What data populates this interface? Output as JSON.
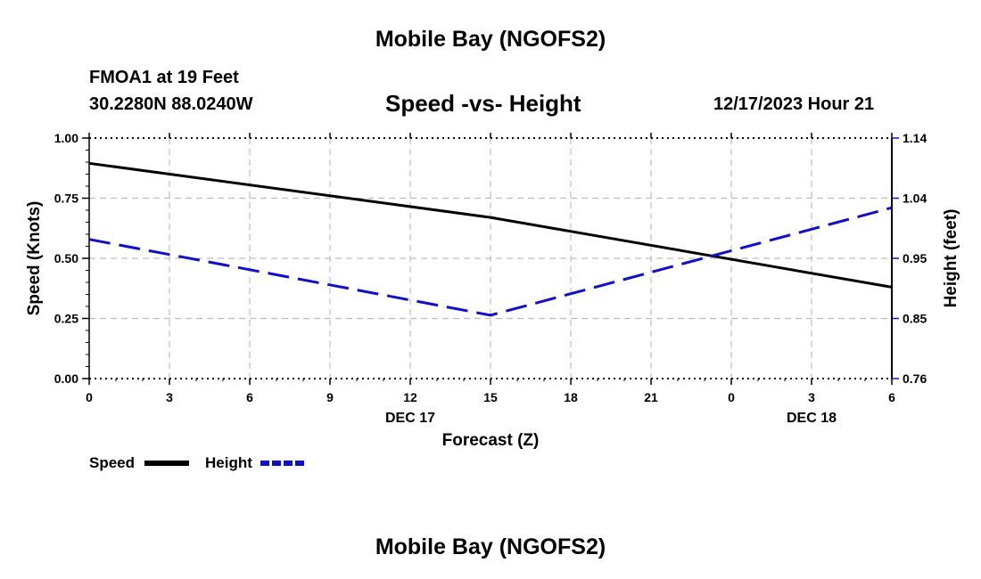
{
  "header": {
    "title": "Mobile Bay (NGOFS2)",
    "station": "FMOA1 at 19 Feet",
    "coords": "30.2280N  88.0240W",
    "subtitle": "Speed -vs- Height",
    "datetime": "12/17/2023 Hour 21",
    "footer_title": "Mobile Bay (NGOFS2)"
  },
  "chart_data": {
    "type": "line",
    "title": "Speed -vs- Height",
    "xlabel": "Forecast (Z)",
    "ylabel": "Speed (Knots)",
    "y2label": "Height (feet)",
    "x": [
      0,
      3,
      6,
      9,
      12,
      15,
      18,
      21,
      24,
      27,
      30
    ],
    "x_tick_labels": [
      "0",
      "3",
      "6",
      "9",
      "12",
      "15",
      "18",
      "21",
      "0",
      "3",
      "6"
    ],
    "x_date_labels": [
      {
        "x": 12,
        "label": "DEC 17"
      },
      {
        "x": 27,
        "label": "DEC 18"
      }
    ],
    "xlim": [
      0,
      30
    ],
    "ylim": [
      0,
      1
    ],
    "y_ticks": [
      "0.00",
      "0.25",
      "0.50",
      "0.75",
      "1.00"
    ],
    "y2lim": [
      0.76,
      1.14
    ],
    "y2_ticks": [
      "0.76",
      "0.85",
      "0.95",
      "1.04",
      "1.14"
    ],
    "grid": true,
    "series": [
      {
        "name": "Speed",
        "axis": "left",
        "color": "#000000",
        "dash": "solid",
        "x": [
          0,
          15,
          30
        ],
        "values": [
          0.895,
          0.67,
          0.38
        ]
      },
      {
        "name": "Height",
        "axis": "right",
        "color": "#1010c8",
        "dash": "dashed",
        "x": [
          0,
          15,
          30
        ],
        "values": [
          0.98,
          0.86,
          1.03
        ]
      }
    ],
    "legend": {
      "placement": "bottom-left",
      "items": [
        "Speed",
        "Height"
      ]
    }
  }
}
